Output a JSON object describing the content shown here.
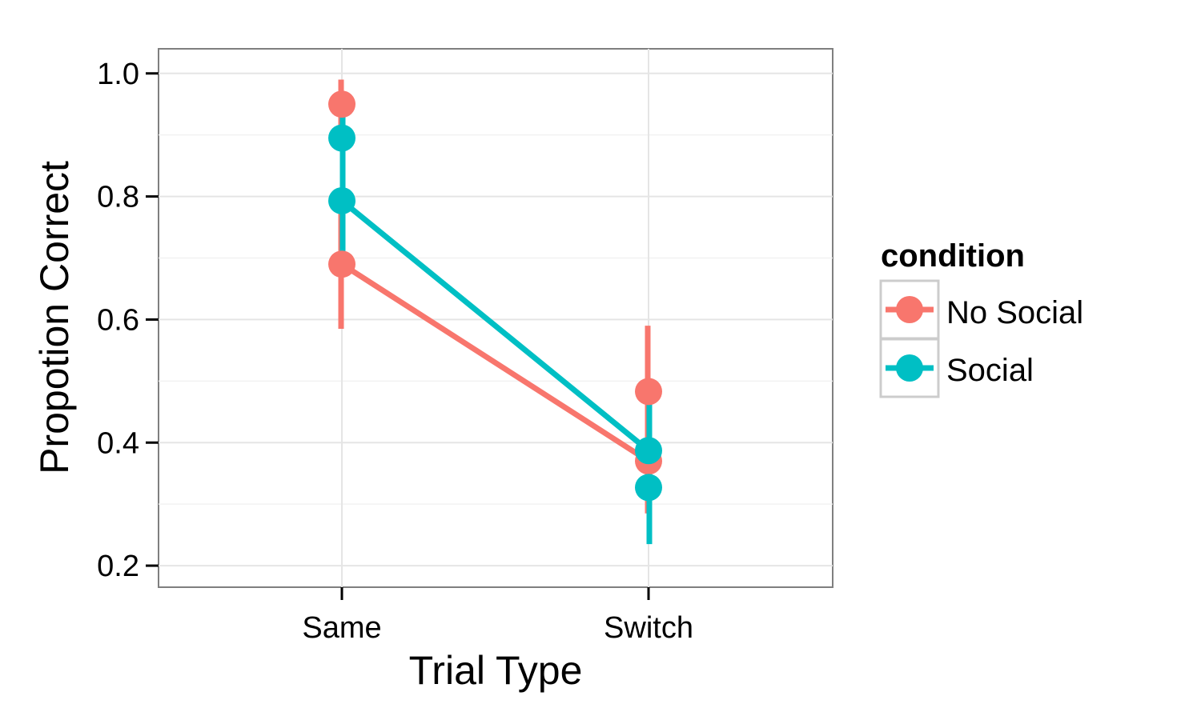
{
  "chart_data": {
    "type": "line",
    "xlabel": "Trial Type",
    "ylabel": "Propotion Correct",
    "categories": [
      "Same",
      "Switch"
    ],
    "ylim": [
      0.165,
      1.04
    ],
    "yticks": [
      "0.2",
      "0.4",
      "0.6",
      "0.8",
      "1.0"
    ],
    "grid": true,
    "legend": {
      "title": "condition",
      "placement": "right",
      "entries": [
        "No Social",
        "Social"
      ]
    },
    "series": [
      {
        "name": "No Social",
        "color": "#F8766D",
        "lines": [
          {
            "values": [
              0.69,
              0.37
            ],
            "error": [
              [
                0.585,
                0.79
              ],
              [
                0.285,
                0.46
              ]
            ]
          }
        ],
        "extra_points": [
          {
            "category": "Same",
            "value": 0.95,
            "error": [
              0.9,
              0.99
            ]
          },
          {
            "category": "Switch",
            "value": 0.483,
            "error": [
              0.4,
              0.59
            ]
          }
        ]
      },
      {
        "name": "Social",
        "color": "#00BFC4",
        "lines": [
          {
            "values": [
              0.793,
              0.387
            ],
            "error": [
              [
                0.68,
                0.89
              ],
              [
                0.29,
                0.49
              ]
            ]
          }
        ],
        "extra_points": [
          {
            "category": "Same",
            "value": 0.895,
            "error": [
              0.83,
              0.96
            ]
          },
          {
            "category": "Switch",
            "value": 0.327,
            "error": [
              0.235,
              0.42
            ]
          }
        ]
      }
    ]
  }
}
